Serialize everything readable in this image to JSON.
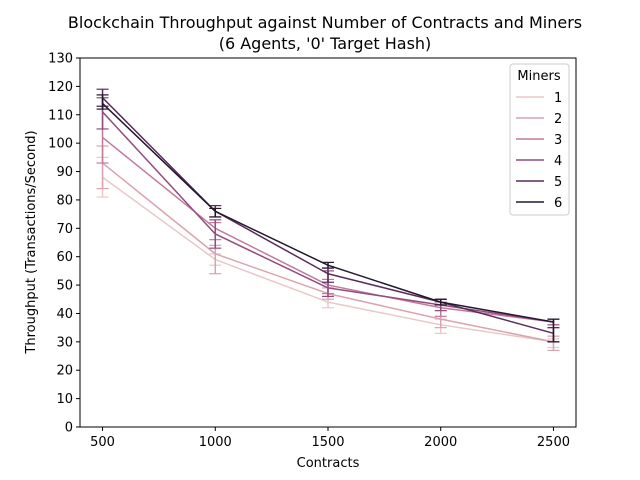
{
  "chart_data": {
    "type": "line",
    "title_line1": "Blockchain Throughput against Number of Contracts and Miners",
    "title_line2": "(6 Agents, '0' Target Hash)",
    "xlabel": "Contracts",
    "ylabel": "Throughput (Transactions/Second)",
    "x": [
      500,
      1000,
      1500,
      2000,
      2500
    ],
    "xticks": [
      "500",
      "1000",
      "1500",
      "2000",
      "2500"
    ],
    "xlim": [
      400,
      2600
    ],
    "ylim": [
      0,
      130
    ],
    "yticks": [
      "0",
      "10",
      "20",
      "30",
      "40",
      "50",
      "60",
      "70",
      "80",
      "90",
      "100",
      "110",
      "120",
      "130"
    ],
    "grid": false,
    "legend": {
      "title": "Miners",
      "placement": "top-right"
    },
    "series": [
      {
        "name": "1",
        "color": "#e8c8c8",
        "values": [
          88,
          59,
          44,
          36,
          30
        ],
        "err_low": [
          81,
          57,
          42,
          33,
          28
        ],
        "err_high": [
          95,
          61,
          46,
          38,
          31
        ]
      },
      {
        "name": "2",
        "color": "#d9a3b1",
        "values": [
          93,
          61,
          47,
          38,
          30
        ],
        "err_low": [
          84,
          54,
          45,
          35,
          27
        ],
        "err_high": [
          99,
          64,
          49,
          41,
          32
        ]
      },
      {
        "name": "3",
        "color": "#c17a9a",
        "values": [
          102,
          70,
          50,
          42,
          37
        ],
        "err_low": [
          93,
          66,
          47,
          39,
          35
        ],
        "err_high": [
          113,
          72,
          52,
          44,
          38
        ]
      },
      {
        "name": "4",
        "color": "#934c7f",
        "values": [
          111,
          68,
          49,
          43,
          37
        ],
        "err_low": [
          105,
          63,
          46,
          41,
          36
        ],
        "err_high": [
          116,
          73,
          55,
          45,
          38
        ]
      },
      {
        "name": "5",
        "color": "#5a2c5a",
        "values": [
          116,
          76,
          54,
          44,
          33
        ],
        "err_low": [
          113,
          74,
          51,
          43,
          30
        ],
        "err_high": [
          119,
          78,
          56,
          45,
          35
        ]
      },
      {
        "name": "6",
        "color": "#22182f",
        "values": [
          114,
          76,
          57,
          44,
          37
        ],
        "err_low": [
          112,
          74,
          56,
          43,
          30
        ],
        "err_high": [
          117,
          77,
          58,
          45,
          38
        ]
      }
    ]
  }
}
